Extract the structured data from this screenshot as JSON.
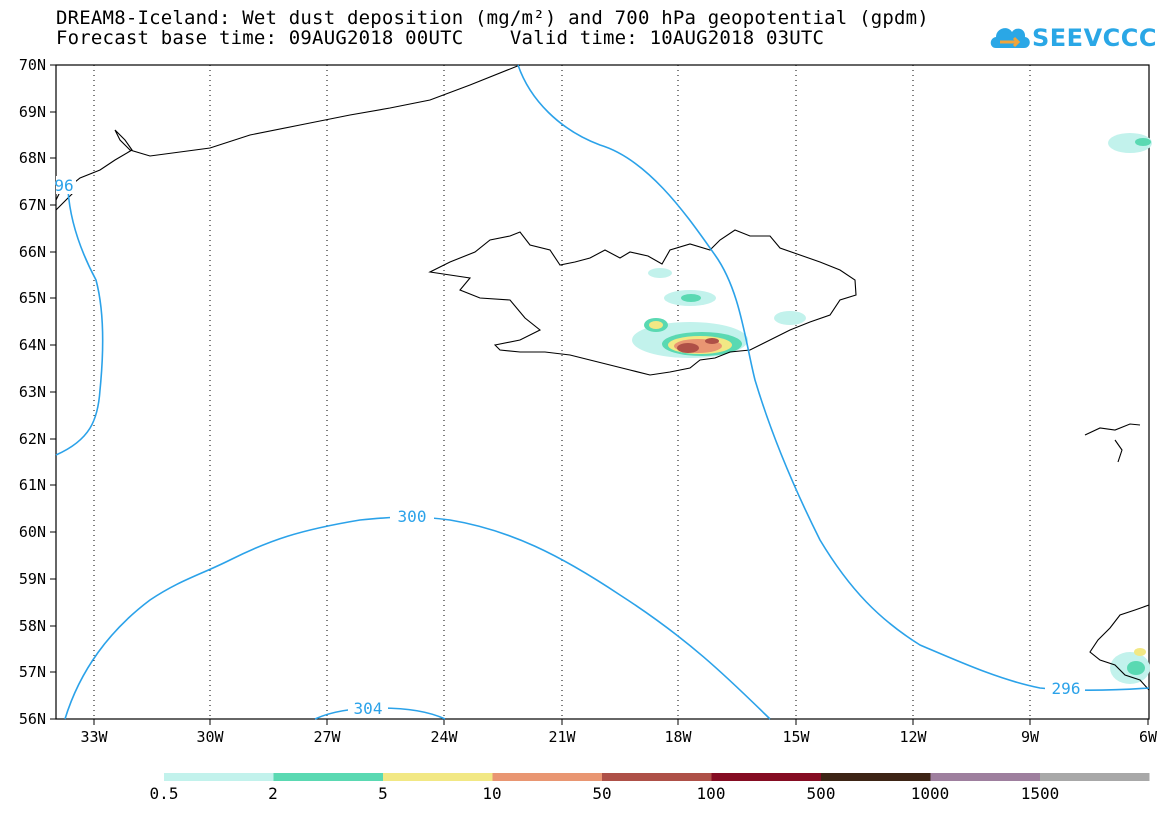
{
  "header": {
    "title_line1": "DREAM8-Iceland: Wet dust deposition (mg/m²) and 700 hPa geopotential (gpdm)",
    "title_line2": "Forecast base time: 09AUG2018 00UTC    Valid time: 10AUG2018 03UTC"
  },
  "logo": {
    "text": "SEEVCCC",
    "icon": "cloud-icon"
  },
  "map": {
    "lat_labels": [
      "70N",
      "69N",
      "68N",
      "67N",
      "66N",
      "65N",
      "64N",
      "63N",
      "62N",
      "61N",
      "60N",
      "59N",
      "58N",
      "57N",
      "56N"
    ],
    "lon_labels": [
      "33W",
      "30W",
      "27W",
      "24W",
      "21W",
      "18W",
      "15W",
      "12W",
      "9W",
      "6W"
    ],
    "lat_range": [
      56,
      70
    ],
    "lon_range": [
      -34.5,
      -6
    ],
    "grid": "dotted",
    "contour_labels": [
      "96",
      "300",
      "304",
      "296"
    ]
  },
  "legend": {
    "labels": [
      "0.5",
      "2",
      "5",
      "10",
      "50",
      "100",
      "500",
      "1000",
      "1500"
    ],
    "colors": [
      "#c2f2ec",
      "#5ad9b2",
      "#f2e884",
      "#e99672",
      "#ae5047",
      "#850c22",
      "#3d2415",
      "#9e7f9e",
      "#a8a8a8"
    ]
  }
}
